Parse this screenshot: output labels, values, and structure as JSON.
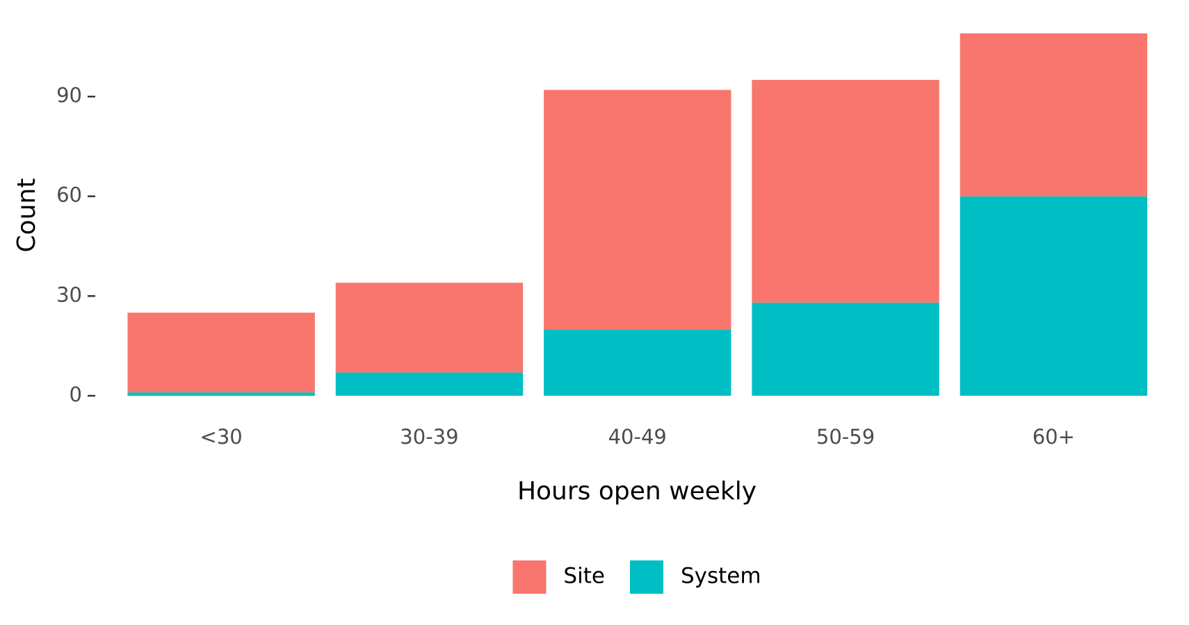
{
  "chart_data": {
    "type": "stacked_bar",
    "x_label": "Hours open weekly",
    "y_label": "Count",
    "categories": [
      "<30",
      "30-39",
      "40-49",
      "50-59",
      "60+"
    ],
    "series": [
      {
        "name": "Site",
        "color": "#F8766D",
        "values": [
          24,
          27,
          72,
          67,
          49
        ]
      },
      {
        "name": "System",
        "color": "#00BFC4",
        "values": [
          1,
          7,
          20,
          28,
          60
        ]
      }
    ],
    "ylim": [
      -5.45,
      114.45
    ],
    "yticks": [
      0,
      30,
      60,
      90
    ],
    "grid": false,
    "legend_position": "bottom"
  }
}
